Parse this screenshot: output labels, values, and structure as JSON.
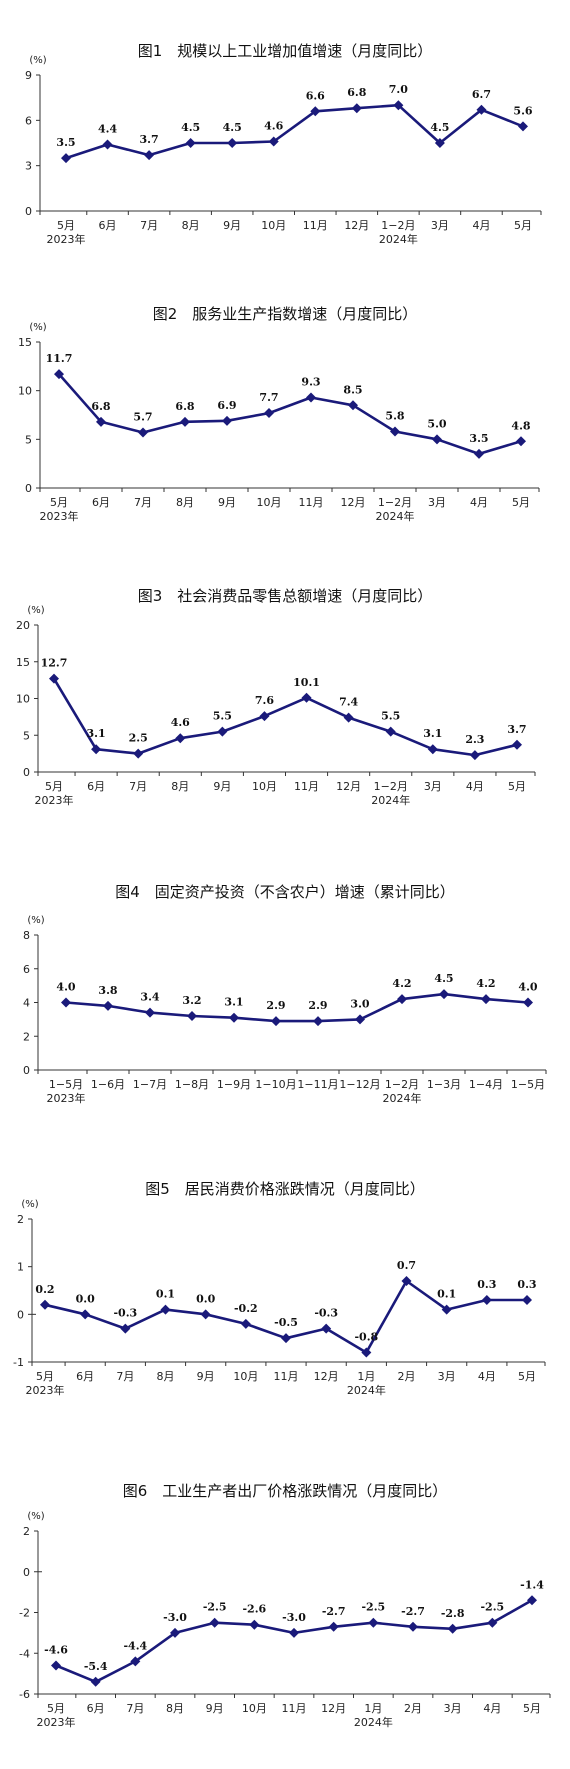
{
  "colors": {
    "series": "#1a1a7a",
    "axis": "#333333"
  },
  "chart_data": [
    {
      "type": "line",
      "title": "图1　规模以上工业增加值增速（月度同比）",
      "unit": "(%)",
      "categories": [
        "5月",
        "6月",
        "7月",
        "8月",
        "9月",
        "10月",
        "11月",
        "12月",
        "1−2月",
        "3月",
        "4月",
        "5月"
      ],
      "year_labels": [
        {
          "index": 0,
          "text": "2023年"
        },
        {
          "index": 8,
          "text": "2024年"
        }
      ],
      "values": [
        3.5,
        4.4,
        3.7,
        4.5,
        4.5,
        4.6,
        6.6,
        6.8,
        7.0,
        4.5,
        6.7,
        5.6
      ],
      "value_labels": [
        "3.5",
        "4.4",
        "3.7",
        "4.5",
        "4.5",
        "4.6",
        "6.6",
        "6.8",
        "7.0",
        "4.5",
        "6.7",
        "5.6"
      ],
      "ylim": [
        0,
        9
      ],
      "yticks": [
        0,
        3,
        6,
        9
      ],
      "grid": false
    },
    {
      "type": "line",
      "title": "图2　服务业生产指数增速（月度同比）",
      "unit": "(%)",
      "categories": [
        "5月",
        "6月",
        "7月",
        "8月",
        "9月",
        "10月",
        "11月",
        "12月",
        "1−2月",
        "3月",
        "4月",
        "5月"
      ],
      "year_labels": [
        {
          "index": 0,
          "text": "2023年"
        },
        {
          "index": 8,
          "text": "2024年"
        }
      ],
      "values": [
        11.7,
        6.8,
        5.7,
        6.8,
        6.9,
        7.7,
        9.3,
        8.5,
        5.8,
        5.0,
        3.5,
        4.8
      ],
      "value_labels": [
        "11.7",
        "6.8",
        "5.7",
        "6.8",
        "6.9",
        "7.7",
        "9.3",
        "8.5",
        "5.8",
        "5.0",
        "3.5",
        "4.8"
      ],
      "ylim": [
        0,
        15
      ],
      "yticks": [
        0,
        5,
        10,
        15
      ],
      "grid": false
    },
    {
      "type": "line",
      "title": "图3　社会消费品零售总额增速（月度同比）",
      "unit": "(%)",
      "categories": [
        "5月",
        "6月",
        "7月",
        "8月",
        "9月",
        "10月",
        "11月",
        "12月",
        "1−2月",
        "3月",
        "4月",
        "5月"
      ],
      "year_labels": [
        {
          "index": 0,
          "text": "2023年"
        },
        {
          "index": 8,
          "text": "2024年"
        }
      ],
      "values": [
        12.7,
        3.1,
        2.5,
        4.6,
        5.5,
        7.6,
        10.1,
        7.4,
        5.5,
        3.1,
        2.3,
        3.7
      ],
      "value_labels": [
        "12.7",
        "3.1",
        "2.5",
        "4.6",
        "5.5",
        "7.6",
        "10.1",
        "7.4",
        "5.5",
        "3.1",
        "2.3",
        "3.7"
      ],
      "ylim": [
        0,
        20
      ],
      "yticks": [
        0,
        5,
        10,
        15,
        20
      ],
      "grid": false
    },
    {
      "type": "line",
      "title": "图4　固定资产投资（不含农户）增速（累计同比）",
      "unit": "(%)",
      "categories": [
        "1−5月",
        "1−6月",
        "1−7月",
        "1−8月",
        "1−9月",
        "1−10月",
        "1−11月",
        "1−12月",
        "1−2月",
        "1−3月",
        "1−4月",
        "1−5月"
      ],
      "year_labels": [
        {
          "index": 0,
          "text": "2023年"
        },
        {
          "index": 8,
          "text": "2024年"
        }
      ],
      "values": [
        4.0,
        3.8,
        3.4,
        3.2,
        3.1,
        2.9,
        2.9,
        3.0,
        4.2,
        4.5,
        4.2,
        4.0
      ],
      "value_labels": [
        "4.0",
        "3.8",
        "3.4",
        "3.2",
        "3.1",
        "2.9",
        "2.9",
        "3.0",
        "4.2",
        "4.5",
        "4.2",
        "4.0"
      ],
      "ylim": [
        0,
        8
      ],
      "yticks": [
        0,
        2,
        4,
        6,
        8
      ],
      "grid": false
    },
    {
      "type": "line",
      "title": "图5　居民消费价格涨跌情况（月度同比）",
      "unit": "(%)",
      "categories": [
        "5月",
        "6月",
        "7月",
        "8月",
        "9月",
        "10月",
        "11月",
        "12月",
        "1月",
        "2月",
        "3月",
        "4月",
        "5月"
      ],
      "year_labels": [
        {
          "index": 0,
          "text": "2023年"
        },
        {
          "index": 8,
          "text": "2024年"
        }
      ],
      "values": [
        0.2,
        0.0,
        -0.3,
        0.1,
        0.0,
        -0.2,
        -0.5,
        -0.3,
        -0.8,
        0.7,
        0.1,
        0.3,
        0.3
      ],
      "value_labels": [
        "0.2",
        "0.0",
        "-0.3",
        "0.1",
        "0.0",
        "-0.2",
        "-0.5",
        "-0.3",
        "-0.8",
        "0.7",
        "0.1",
        "0.3",
        "0.3"
      ],
      "ylim": [
        -1,
        2
      ],
      "yticks": [
        -1,
        0,
        1,
        2
      ],
      "grid": false
    },
    {
      "type": "line",
      "title": "图6　工业生产者出厂价格涨跌情况（月度同比）",
      "unit": "(%)",
      "categories": [
        "5月",
        "6月",
        "7月",
        "8月",
        "9月",
        "10月",
        "11月",
        "12月",
        "1月",
        "2月",
        "3月",
        "4月",
        "5月"
      ],
      "year_labels": [
        {
          "index": 0,
          "text": "2023年"
        },
        {
          "index": 8,
          "text": "2024年"
        }
      ],
      "values": [
        -4.6,
        -5.4,
        -4.4,
        -3.0,
        -2.5,
        -2.6,
        -3.0,
        -2.7,
        -2.5,
        -2.7,
        -2.8,
        -2.5,
        -1.4
      ],
      "value_labels": [
        "-4.6",
        "-5.4",
        "-4.4",
        "-3.0",
        "-2.5",
        "-2.6",
        "-3.0",
        "-2.7",
        "-2.5",
        "-2.7",
        "-2.8",
        "-2.5",
        "-1.4"
      ],
      "ylim": [
        -6,
        2
      ],
      "yticks": [
        -6,
        -4,
        -2,
        0,
        2
      ],
      "grid": false
    }
  ]
}
